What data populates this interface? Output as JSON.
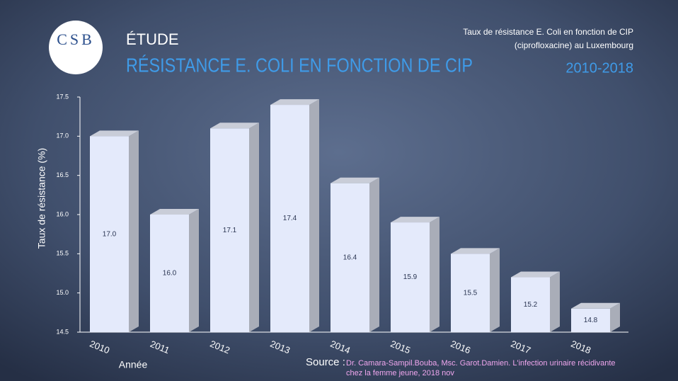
{
  "logo": "CSB",
  "chart_data": {
    "type": "bar",
    "kicker": "ÉTUDE",
    "title": "RÉSISTANCE E. COLI EN FONCTION DE CIP",
    "subtitle": [
      "Taux de résistance E. Coli en fonction de CIP",
      "(ciprofloxacine) au Luxembourg"
    ],
    "period": "2010-2018",
    "y_label": "Taux de résistance (%)",
    "x_label": "Année",
    "source_label": "Source :",
    "source": [
      "Dr. Camara-Sampil.Bouba, Msc. Garot.Damien. L'infection urinaire récidivante",
      "chez la femme jeune, 2018 nov"
    ],
    "categories": [
      "2010",
      "2011",
      "2012",
      "2013",
      "2014",
      "2015",
      "2016",
      "2017",
      "2018"
    ],
    "values": [
      17.0,
      16.0,
      17.1,
      17.4,
      16.4,
      15.9,
      15.5,
      15.2,
      14.8
    ],
    "value_labels": [
      "17.0",
      "16.0",
      "17.1",
      "17.4",
      "16.4",
      "15.9",
      "15.5",
      "15.2",
      "14.8"
    ],
    "color": "#e4eafb",
    "ylim": [
      14.5,
      17.5
    ],
    "yticks": [
      14.5,
      {
        "value": 15,
        "label": "15.0"
      },
      15.5,
      {
        "value": 16,
        "label": "16.0"
      },
      16.5,
      {
        "value": 17,
        "label": "17.0"
      },
      17.5
    ]
  }
}
